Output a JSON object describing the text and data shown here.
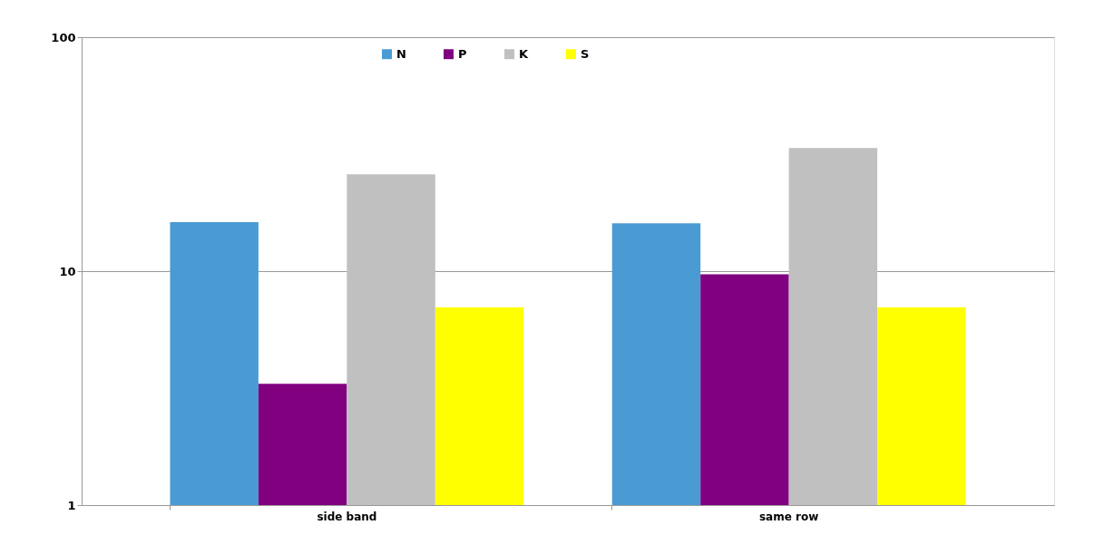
{
  "chart_data": {
    "type": "bar",
    "categories": [
      "side band",
      "same row"
    ],
    "series": [
      {
        "name": "N",
        "color": "#4a9bd4",
        "values": [
          16.2,
          16.0
        ]
      },
      {
        "name": "P",
        "color": "#800080",
        "values": [
          3.3,
          9.7
        ]
      },
      {
        "name": "K",
        "color": "#c0c0c0",
        "values": [
          25.9,
          33.6
        ]
      },
      {
        "name": "S",
        "color": "#ffff00",
        "values": [
          7.0,
          7.0
        ]
      }
    ],
    "log": true,
    "ylim": [
      1,
      100
    ],
    "yticks": [
      1,
      10,
      100
    ],
    "grid": "y",
    "legend": "top"
  }
}
